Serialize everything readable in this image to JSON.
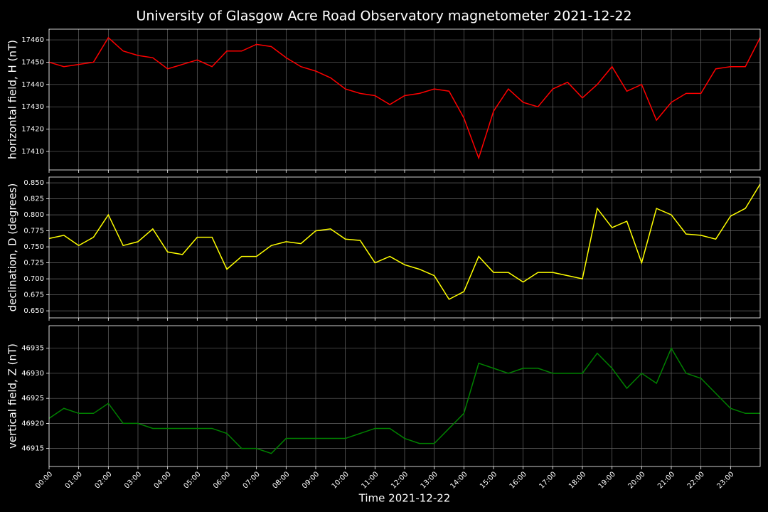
{
  "title": "University of Glasgow Acre Road Observatory magnetometer 2021-12-22",
  "chart_data": [
    {
      "type": "line",
      "ylabel": "horizontal field, H (nT)",
      "color": "#ff0000",
      "grid": true,
      "xlim": [
        0,
        24
      ],
      "ylim": [
        17401.7,
        17464.8
      ],
      "yticks": [
        17410,
        17420,
        17430,
        17440,
        17450,
        17460
      ],
      "x": [
        0,
        0.5,
        1,
        1.5,
        2,
        2.5,
        3,
        3.5,
        4,
        4.5,
        5,
        5.5,
        6,
        6.5,
        7,
        7.5,
        8,
        8.5,
        9,
        9.5,
        10,
        10.5,
        11,
        11.5,
        12,
        12.5,
        13,
        13.5,
        14,
        14.5,
        15,
        15.5,
        16,
        16.5,
        17,
        17.5,
        18,
        18.5,
        19,
        19.5,
        20,
        20.5,
        21,
        21.5,
        22,
        22.5,
        23,
        23.5,
        24
      ],
      "values": [
        17450,
        17448,
        17449,
        17450,
        17461,
        17455,
        17453,
        17452,
        17447,
        17449,
        17451,
        17448,
        17455,
        17455,
        17458,
        17457,
        17452,
        17448,
        17446,
        17443,
        17438,
        17436,
        17435,
        17431,
        17435,
        17436,
        17438,
        17437,
        17425,
        17407,
        17428,
        17438,
        17432,
        17430,
        17438,
        17441,
        17434,
        17440,
        17448,
        17437,
        17440,
        17424,
        17432,
        17436,
        17436,
        17447,
        17448,
        17448,
        17461
      ]
    },
    {
      "type": "line",
      "ylabel": "declination, D (degrees)",
      "color": "#ffff00",
      "grid": true,
      "xlim": [
        0,
        24
      ],
      "ylim": [
        0.639,
        0.859
      ],
      "yticks": [
        {
          "value": 0.65,
          "label": "0.650"
        },
        {
          "value": 0.675,
          "label": "0.675"
        },
        {
          "value": 0.7,
          "label": "0.700"
        },
        {
          "value": 0.725,
          "label": "0.725"
        },
        {
          "value": 0.75,
          "label": "0.750"
        },
        {
          "value": 0.775,
          "label": "0.775"
        },
        {
          "value": 0.8,
          "label": "0.800"
        },
        {
          "value": 0.825,
          "label": "0.825"
        },
        {
          "value": 0.85,
          "label": "0.850"
        }
      ],
      "x": [
        0,
        0.5,
        1,
        1.5,
        2,
        2.5,
        3,
        3.5,
        4,
        4.5,
        5,
        5.5,
        6,
        6.5,
        7,
        7.5,
        8,
        8.5,
        9,
        9.5,
        10,
        10.5,
        11,
        11.5,
        12,
        12.5,
        13,
        13.5,
        14,
        14.5,
        15,
        15.5,
        16,
        16.5,
        17,
        17.5,
        18,
        18.5,
        19,
        19.5,
        20,
        20.5,
        21,
        21.5,
        22,
        22.5,
        23,
        23.5,
        24
      ],
      "values": [
        0.763,
        0.768,
        0.752,
        0.765,
        0.8,
        0.752,
        0.758,
        0.778,
        0.742,
        0.738,
        0.765,
        0.765,
        0.715,
        0.735,
        0.735,
        0.752,
        0.758,
        0.755,
        0.775,
        0.778,
        0.762,
        0.76,
        0.725,
        0.735,
        0.722,
        0.715,
        0.705,
        0.668,
        0.68,
        0.735,
        0.71,
        0.71,
        0.695,
        0.71,
        0.71,
        0.705,
        0.7,
        0.81,
        0.78,
        0.79,
        0.725,
        0.81,
        0.8,
        0.77,
        0.768,
        0.762,
        0.798,
        0.81,
        0.848
      ]
    },
    {
      "type": "line",
      "ylabel": "vertical field, Z (nT)",
      "xlabel": "Time 2021-12-22",
      "color": "#008000",
      "grid": true,
      "xlim": [
        0,
        24
      ],
      "ylim": [
        46911.4,
        46939.5
      ],
      "yticks": [
        46915,
        46920,
        46925,
        46930,
        46935
      ],
      "xticks": [
        {
          "value": 0,
          "label": "00:00"
        },
        {
          "value": 1,
          "label": "01:00"
        },
        {
          "value": 2,
          "label": "02:00"
        },
        {
          "value": 3,
          "label": "03:00"
        },
        {
          "value": 4,
          "label": "04:00"
        },
        {
          "value": 5,
          "label": "05:00"
        },
        {
          "value": 6,
          "label": "06:00"
        },
        {
          "value": 7,
          "label": "07:00"
        },
        {
          "value": 8,
          "label": "08:00"
        },
        {
          "value": 9,
          "label": "09:00"
        },
        {
          "value": 10,
          "label": "10:00"
        },
        {
          "value": 11,
          "label": "11:00"
        },
        {
          "value": 12,
          "label": "12:00"
        },
        {
          "value": 13,
          "label": "13:00"
        },
        {
          "value": 14,
          "label": "14:00"
        },
        {
          "value": 15,
          "label": "15:00"
        },
        {
          "value": 16,
          "label": "16:00"
        },
        {
          "value": 17,
          "label": "17:00"
        },
        {
          "value": 18,
          "label": "18:00"
        },
        {
          "value": 19,
          "label": "19:00"
        },
        {
          "value": 20,
          "label": "20:00"
        },
        {
          "value": 21,
          "label": "21:00"
        },
        {
          "value": 22,
          "label": "22:00"
        },
        {
          "value": 23,
          "label": "23:00"
        }
      ],
      "x": [
        0,
        0.5,
        1,
        1.5,
        2,
        2.5,
        3,
        3.5,
        4,
        4.5,
        5,
        5.5,
        6,
        6.5,
        7,
        7.5,
        8,
        8.5,
        9,
        9.5,
        10,
        10.5,
        11,
        11.5,
        12,
        12.5,
        13,
        13.5,
        14,
        14.5,
        15,
        15.5,
        16,
        16.5,
        17,
        17.5,
        18,
        18.5,
        19,
        19.5,
        20,
        20.5,
        21,
        21.5,
        22,
        22.5,
        23,
        23.5,
        24
      ],
      "values": [
        46921,
        46923,
        46922,
        46922,
        46924,
        46920,
        46920,
        46919,
        46919,
        46919,
        46919,
        46919,
        46918,
        46915,
        46915,
        46914,
        46917,
        46917,
        46917,
        46917,
        46917,
        46918,
        46919,
        46919,
        46917,
        46916,
        46916,
        46919,
        46922,
        46932,
        46931,
        46930,
        46931,
        46931,
        46930,
        46930,
        46930,
        46934,
        46931,
        46927,
        46930,
        46928,
        46935,
        46930,
        46929,
        46926,
        46923,
        46922,
        46922
      ]
    }
  ]
}
